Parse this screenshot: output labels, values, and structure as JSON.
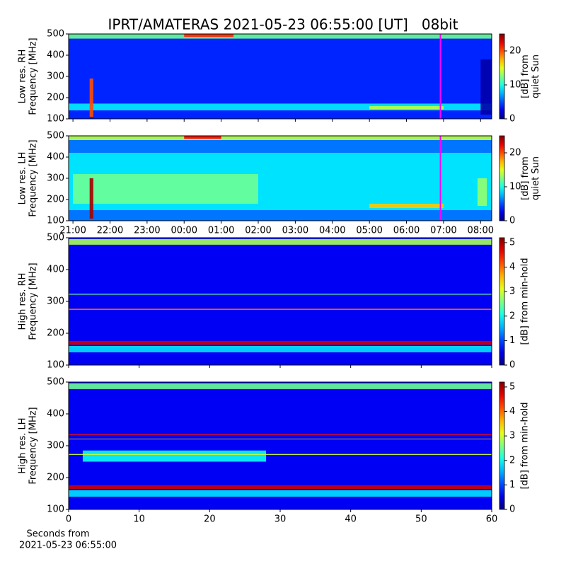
{
  "title": "IPRT/AMATERAS 2021-05-23 06:55:00 [UT]   08bit",
  "chart_data": [
    {
      "type": "spectrogram",
      "ylabel": [
        "Low res. RH",
        "Frequency [MHz]"
      ],
      "ylim": [
        100,
        500
      ],
      "yticks": [
        100,
        200,
        300,
        400,
        500
      ],
      "xlim": [
        "20:53",
        "08:18"
      ],
      "xticks": [
        "21:00",
        "22:00",
        "23:00",
        "00:00",
        "01:00",
        "02:00",
        "03:00",
        "04:00",
        "05:00",
        "06:00",
        "07:00",
        "08:00"
      ],
      "xticklabels": false,
      "marker": {
        "x": "06:55",
        "color": "#ff00ff"
      },
      "clim": [
        0,
        25
      ],
      "cticks": [
        0,
        10,
        20
      ],
      "clabel": [
        "[dB] from",
        "quiet Sun"
      ],
      "colormap": "jet",
      "background": 4,
      "features": [
        {
          "x0": "20:53",
          "x1": "08:18",
          "f0": 478,
          "f1": 500,
          "level": 12
        },
        {
          "x0": "00:00",
          "x1": "01:20",
          "f0": 486,
          "f1": 500,
          "level": 21
        },
        {
          "x0": "20:53",
          "x1": "08:18",
          "f0": 140,
          "f1": 172,
          "level": 9
        },
        {
          "x0": "21:27",
          "x1": "21:33",
          "f0": 110,
          "f1": 290,
          "level": 20
        },
        {
          "x0": "05:00",
          "x1": "07:00",
          "f0": 145,
          "f1": 160,
          "level": 14
        },
        {
          "x0": "08:00",
          "x1": "08:18",
          "f0": 120,
          "f1": 380,
          "level": 1
        }
      ]
    },
    {
      "type": "spectrogram",
      "ylabel": [
        "Low res. LH",
        "Frequency [MHz]"
      ],
      "ylim": [
        100,
        500
      ],
      "yticks": [
        100,
        200,
        300,
        400,
        500
      ],
      "xlim": [
        "20:53",
        "08:18"
      ],
      "xticks": [
        "21:00",
        "22:00",
        "23:00",
        "00:00",
        "01:00",
        "02:00",
        "03:00",
        "04:00",
        "05:00",
        "06:00",
        "07:00",
        "08:00"
      ],
      "xticklabels": true,
      "marker": {
        "x": "06:55",
        "color": "#ff00ff"
      },
      "clim": [
        0,
        25
      ],
      "cticks": [
        0,
        10,
        20
      ],
      "clabel": [
        "[dB] from",
        "quiet Sun"
      ],
      "colormap": "jet",
      "background": 6,
      "features": [
        {
          "x0": "20:53",
          "x1": "08:18",
          "f0": 150,
          "f1": 420,
          "level": 9
        },
        {
          "x0": "21:00",
          "x1": "02:00",
          "f0": 180,
          "f1": 320,
          "level": 12
        },
        {
          "x0": "20:53",
          "x1": "08:18",
          "f0": 480,
          "f1": 500,
          "level": 14
        },
        {
          "x0": "00:00",
          "x1": "01:00",
          "f0": 486,
          "f1": 500,
          "level": 22
        },
        {
          "x0": "21:27",
          "x1": "21:33",
          "f0": 110,
          "f1": 300,
          "level": 24
        },
        {
          "x0": "05:00",
          "x1": "07:00",
          "f0": 160,
          "f1": 180,
          "level": 17
        },
        {
          "x0": "07:55",
          "x1": "08:10",
          "f0": 170,
          "f1": 300,
          "level": 13
        }
      ]
    },
    {
      "type": "spectrogram",
      "ylabel": [
        "High res. RH",
        "Frequency [MHz]"
      ],
      "ylim": [
        100,
        500
      ],
      "yticks": [
        100,
        200,
        300,
        400,
        500
      ],
      "xlim": [
        0,
        60
      ],
      "xticks": [
        0,
        10,
        20,
        30,
        40,
        50,
        60
      ],
      "xticklabels": false,
      "clim": [
        0,
        5.2
      ],
      "cticks": [
        0,
        1,
        2,
        3,
        4,
        5
      ],
      "clabel": [
        "[dB] from min-hold"
      ],
      "colormap": "jet",
      "background": 0.6,
      "features": [
        {
          "x0": 0,
          "x1": 60,
          "f0": 140,
          "f1": 160,
          "level": 1.8
        },
        {
          "x0": 0,
          "x1": 60,
          "f0": 164,
          "f1": 176,
          "level": 4.8
        },
        {
          "x0": 0,
          "x1": 60,
          "f0": 273,
          "f1": 277,
          "level": 4
        },
        {
          "x0": 0,
          "x1": 60,
          "f0": 321,
          "f1": 324,
          "level": 2.5
        },
        {
          "x0": 0,
          "x1": 60,
          "f0": 478,
          "f1": 496,
          "level": 2.8
        }
      ]
    },
    {
      "type": "spectrogram",
      "ylabel": [
        "High res. LH",
        "Frequency [MHz]"
      ],
      "ylim": [
        100,
        500
      ],
      "yticks": [
        100,
        200,
        300,
        400,
        500
      ],
      "xlim": [
        0,
        60
      ],
      "xticks": [
        0,
        10,
        20,
        30,
        40,
        50,
        60
      ],
      "xticklabels": true,
      "xlabel": [
        "Seconds from",
        "2021-05-23 06:55:00"
      ],
      "clim": [
        0,
        5.2
      ],
      "cticks": [
        0,
        1,
        2,
        3,
        4,
        5
      ],
      "clabel": [
        "[dB] from min-hold"
      ],
      "colormap": "jet",
      "background": 0.6,
      "features": [
        {
          "x0": 0,
          "x1": 60,
          "f0": 140,
          "f1": 160,
          "level": 1.8
        },
        {
          "x0": 0,
          "x1": 60,
          "f0": 164,
          "f1": 176,
          "level": 4.8
        },
        {
          "x0": 2,
          "x1": 28,
          "f0": 250,
          "f1": 285,
          "level": 2
        },
        {
          "x0": 0,
          "x1": 60,
          "f0": 271,
          "f1": 274,
          "level": 3
        },
        {
          "x0": 0,
          "x1": 60,
          "f0": 320,
          "f1": 322,
          "level": 3.5
        },
        {
          "x0": 0,
          "x1": 60,
          "f0": 333,
          "f1": 336,
          "level": 4.5
        },
        {
          "x0": 0,
          "x1": 60,
          "f0": 478,
          "f1": 496,
          "level": 2.5
        }
      ]
    }
  ]
}
